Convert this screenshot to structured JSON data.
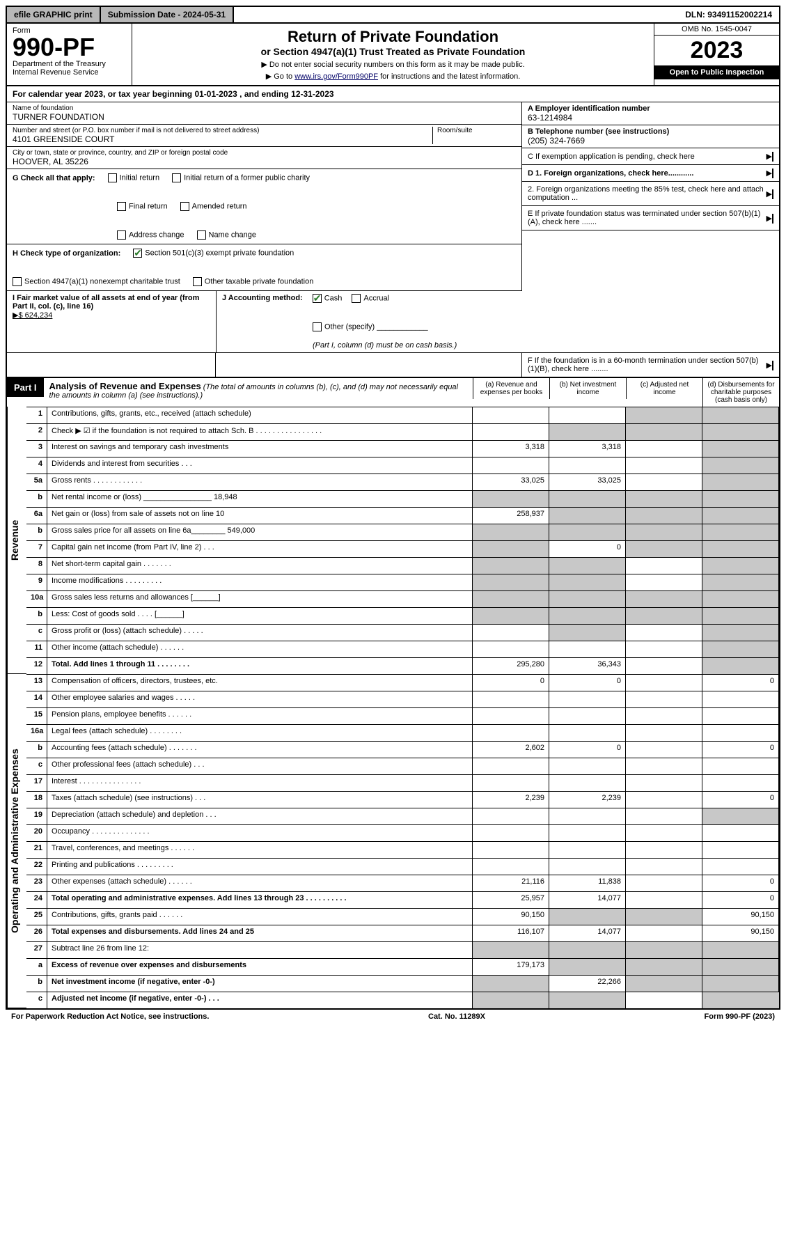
{
  "topbar": {
    "efile": "efile GRAPHIC print",
    "submission": "Submission Date - 2024-05-31",
    "dln": "DLN: 93491152002214"
  },
  "header": {
    "form_label": "Form",
    "form_num": "990-PF",
    "dept": "Department of the Treasury",
    "irs": "Internal Revenue Service",
    "title": "Return of Private Foundation",
    "subtitle": "or Section 4947(a)(1) Trust Treated as Private Foundation",
    "note1": "▶ Do not enter social security numbers on this form as it may be made public.",
    "note2_pre": "▶ Go to ",
    "note2_link": "www.irs.gov/Form990PF",
    "note2_post": " for instructions and the latest information.",
    "omb": "OMB No. 1545-0047",
    "year": "2023",
    "open": "Open to Public Inspection"
  },
  "cal": "For calendar year 2023, or tax year beginning 01-01-2023                         , and ending 12-31-2023",
  "meta": {
    "name_label": "Name of foundation",
    "name": "TURNER FOUNDATION",
    "addr_label": "Number and street (or P.O. box number if mail is not delivered to street address)",
    "addr": "4101 GREENSIDE COURT",
    "room_label": "Room/suite",
    "city_label": "City or town, state or province, country, and ZIP or foreign postal code",
    "city": "HOOVER, AL  35226",
    "a_label": "A Employer identification number",
    "a_val": "63-1214984",
    "b_label": "B Telephone number (see instructions)",
    "b_val": "(205) 324-7669",
    "c_label": "C If exemption application is pending, check here",
    "d1": "D 1. Foreign organizations, check here............",
    "d2": "2. Foreign organizations meeting the 85% test, check here and attach computation ...",
    "e": "E  If private foundation status was terminated under section 507(b)(1)(A), check here .......",
    "f": "F  If the foundation is in a 60-month termination under section 507(b)(1)(B), check here ........"
  },
  "g": {
    "label": "G Check all that apply:",
    "opts": [
      "Initial return",
      "Final return",
      "Address change",
      "Initial return of a former public charity",
      "Amended return",
      "Name change"
    ]
  },
  "h": {
    "label": "H Check type of organization:",
    "opt1": "Section 501(c)(3) exempt private foundation",
    "opt2": "Section 4947(a)(1) nonexempt charitable trust",
    "opt3": "Other taxable private foundation"
  },
  "i": {
    "label": "I Fair market value of all assets at end of year (from Part II, col. (c), line 16)",
    "val": "▶$  624,234"
  },
  "j": {
    "label": "J Accounting method:",
    "cash": "Cash",
    "accrual": "Accrual",
    "other": "Other (specify)",
    "note": "(Part I, column (d) must be on cash basis.)"
  },
  "part1": {
    "tag": "Part I",
    "title": "Analysis of Revenue and Expenses",
    "sub": "(The total of amounts in columns (b), (c), and (d) may not necessarily equal the amounts in column (a) (see instructions).)",
    "col_a": "(a)    Revenue and expenses per books",
    "col_b": "(b)   Net investment income",
    "col_c": "(c)   Adjusted net income",
    "col_d": "(d)   Disbursements for charitable purposes (cash basis only)"
  },
  "side": {
    "rev": "Revenue",
    "ops": "Operating and Administrative Expenses"
  },
  "rows": [
    {
      "n": "1",
      "d": "Contributions, gifts, grants, etc., received (attach schedule)",
      "a": "",
      "b": "",
      "c": "s",
      "dcol": "s"
    },
    {
      "n": "2",
      "d": "Check ▶ ☑ if the foundation is not required to attach Sch. B    .   .   .   .   .   .   .   .   .   .   .   .   .   .   .   .",
      "a": "",
      "b": "s",
      "c": "s",
      "dcol": "s"
    },
    {
      "n": "3",
      "d": "Interest on savings and temporary cash investments",
      "a": "3,318",
      "b": "3,318",
      "c": "",
      "dcol": "s"
    },
    {
      "n": "4",
      "d": "Dividends and interest from securities    .   .   .",
      "a": "",
      "b": "",
      "c": "",
      "dcol": "s"
    },
    {
      "n": "5a",
      "d": "Gross rents    .   .   .   .   .   .   .   .   .   .   .   .",
      "a": "33,025",
      "b": "33,025",
      "c": "",
      "dcol": "s"
    },
    {
      "n": "b",
      "d": "Net rental income or (loss) ________________ 18,948",
      "a": "s",
      "b": "s",
      "c": "s",
      "dcol": "s"
    },
    {
      "n": "6a",
      "d": "Net gain or (loss) from sale of assets not on line 10",
      "a": "258,937",
      "b": "s",
      "c": "s",
      "dcol": "s"
    },
    {
      "n": "b",
      "d": "Gross sales price for all assets on line 6a________ 549,000",
      "a": "s",
      "b": "s",
      "c": "s",
      "dcol": "s"
    },
    {
      "n": "7",
      "d": "Capital gain net income (from Part IV, line 2)    .   .   .",
      "a": "s",
      "b": "0",
      "c": "s",
      "dcol": "s"
    },
    {
      "n": "8",
      "d": "Net short-term capital gain    .   .   .   .   .   .   .",
      "a": "s",
      "b": "s",
      "c": "",
      "dcol": "s"
    },
    {
      "n": "9",
      "d": "Income modifications   .   .   .   .   .   .   .   .   .",
      "a": "s",
      "b": "s",
      "c": "",
      "dcol": "s"
    },
    {
      "n": "10a",
      "d": "Gross sales less returns and allowances  [______]",
      "a": "s",
      "b": "s",
      "c": "s",
      "dcol": "s"
    },
    {
      "n": "b",
      "d": "Less: Cost of goods sold    .   .   .   .   [______]",
      "a": "s",
      "b": "s",
      "c": "s",
      "dcol": "s"
    },
    {
      "n": "c",
      "d": "Gross profit or (loss) (attach schedule)    .   .   .   .   .",
      "a": "",
      "b": "s",
      "c": "",
      "dcol": "s"
    },
    {
      "n": "11",
      "d": "Other income (attach schedule)   .    .   .   .   .   .",
      "a": "",
      "b": "",
      "c": "",
      "dcol": "s"
    },
    {
      "n": "12",
      "d": "Total. Add lines 1 through 11    .   .   .   .   .   .   .   .",
      "a": "295,280",
      "b": "36,343",
      "c": "",
      "dcol": "s",
      "bold": true
    }
  ],
  "ops_rows": [
    {
      "n": "13",
      "d": "Compensation of officers, directors, trustees, etc.",
      "a": "0",
      "b": "0",
      "c": "",
      "dcol": "0"
    },
    {
      "n": "14",
      "d": "Other employee salaries and wages    .   .   .   .   .",
      "a": "",
      "b": "",
      "c": "",
      "dcol": ""
    },
    {
      "n": "15",
      "d": "Pension plans, employee benefits   .    .   .   .   .   .",
      "a": "",
      "b": "",
      "c": "",
      "dcol": ""
    },
    {
      "n": "16a",
      "d": "Legal fees (attach schedule)  .   .   .   .   .   .   .   .",
      "a": "",
      "b": "",
      "c": "",
      "dcol": ""
    },
    {
      "n": "b",
      "d": "Accounting fees (attach schedule)  .   .   .   .   .   .   .",
      "a": "2,602",
      "b": "0",
      "c": "",
      "dcol": "0"
    },
    {
      "n": "c",
      "d": "Other professional fees (attach schedule)    .   .   .",
      "a": "",
      "b": "",
      "c": "",
      "dcol": ""
    },
    {
      "n": "17",
      "d": "Interest .   .   .   .   .   .   .   .   .   .   .   .   .   .   .",
      "a": "",
      "b": "",
      "c": "",
      "dcol": ""
    },
    {
      "n": "18",
      "d": "Taxes (attach schedule) (see instructions)    .   .   .",
      "a": "2,239",
      "b": "2,239",
      "c": "",
      "dcol": "0"
    },
    {
      "n": "19",
      "d": "Depreciation (attach schedule) and depletion    .   .   .",
      "a": "",
      "b": "",
      "c": "",
      "dcol": "s"
    },
    {
      "n": "20",
      "d": "Occupancy  .   .   .   .   .   .   .   .   .   .   .   .   .   .",
      "a": "",
      "b": "",
      "c": "",
      "dcol": ""
    },
    {
      "n": "21",
      "d": "Travel, conferences, and meetings  .   .   .   .   .   .",
      "a": "",
      "b": "",
      "c": "",
      "dcol": ""
    },
    {
      "n": "22",
      "d": "Printing and publications  .   .   .   .   .   .   .   .   .",
      "a": "",
      "b": "",
      "c": "",
      "dcol": ""
    },
    {
      "n": "23",
      "d": "Other expenses (attach schedule)  .   .   .   .   .   .",
      "a": "21,116",
      "b": "11,838",
      "c": "",
      "dcol": "0"
    },
    {
      "n": "24",
      "d": "Total operating and administrative expenses. Add lines 13 through 23   .   .   .   .   .   .   .   .   .   .",
      "a": "25,957",
      "b": "14,077",
      "c": "",
      "dcol": "0",
      "bold": true
    },
    {
      "n": "25",
      "d": "Contributions, gifts, grants paid    .   .   .   .   .   .",
      "a": "90,150",
      "b": "s",
      "c": "s",
      "dcol": "90,150"
    },
    {
      "n": "26",
      "d": "Total expenses and disbursements. Add lines 24 and 25",
      "a": "116,107",
      "b": "14,077",
      "c": "",
      "dcol": "90,150",
      "bold": true
    },
    {
      "n": "27",
      "d": "Subtract line 26 from line 12:",
      "a": "s",
      "b": "s",
      "c": "s",
      "dcol": "s"
    },
    {
      "n": "a",
      "d": "Excess of revenue over expenses and disbursements",
      "a": "179,173",
      "b": "s",
      "c": "s",
      "dcol": "s",
      "bold": true
    },
    {
      "n": "b",
      "d": "Net investment income (if negative, enter -0-)",
      "a": "s",
      "b": "22,266",
      "c": "s",
      "dcol": "s",
      "bold": true
    },
    {
      "n": "c",
      "d": "Adjusted net income (if negative, enter -0-)   .   .   .",
      "a": "s",
      "b": "s",
      "c": "",
      "dcol": "s",
      "bold": true
    }
  ],
  "footer": {
    "left": "For Paperwork Reduction Act Notice, see instructions.",
    "mid": "Cat. No. 11289X",
    "right": "Form 990-PF (2023)"
  }
}
